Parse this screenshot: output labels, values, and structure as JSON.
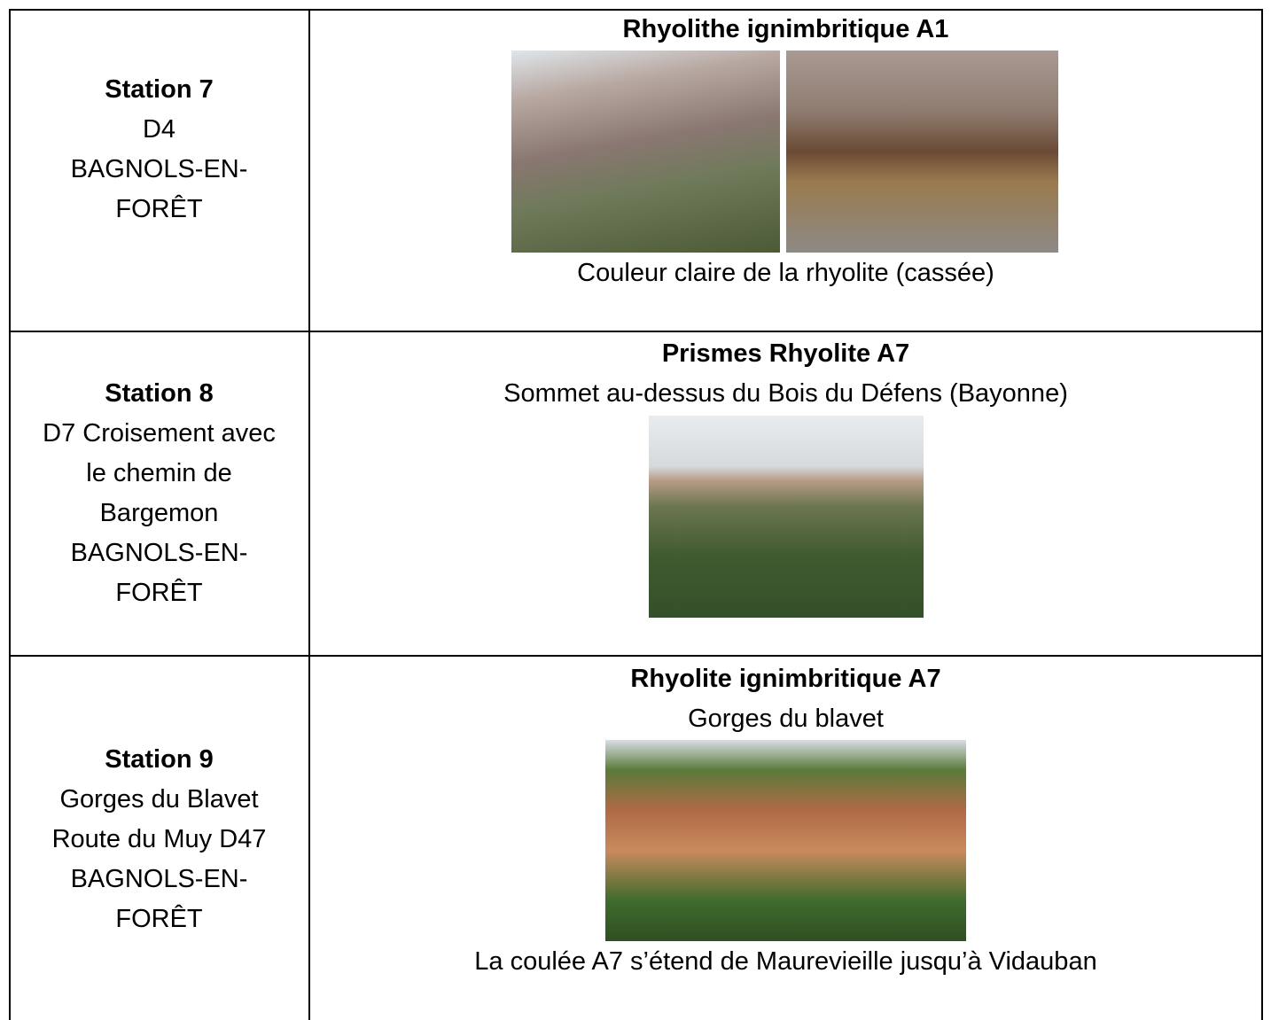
{
  "table": {
    "rows": [
      {
        "station": {
          "title": "Station 7",
          "lines": [
            "D4",
            "BAGNOLS-EN-",
            "FORÊT"
          ]
        },
        "content": {
          "title": "Rhyolithe ignimbritique A1",
          "caption": "Couleur claire de la rhyolite (cassée)"
        }
      },
      {
        "station": {
          "title": "Station 8",
          "lines": [
            "D7 Croisement avec",
            "le chemin de",
            "Bargemon",
            "BAGNOLS-EN-",
            "FORÊT"
          ]
        },
        "content": {
          "title": "Prismes Rhyolite A7",
          "subtitle": "Sommet au-dessus du Bois du Défens (Bayonne)"
        }
      },
      {
        "station": {
          "title": "Station 9",
          "lines": [
            "Gorges du Blavet",
            "Route du Muy D47",
            "BAGNOLS-EN-",
            "FORÊT"
          ]
        },
        "content": {
          "title": "Rhyolite ignimbritique A7",
          "subtitle": "Gorges du blavet",
          "caption": "La coulée A7 s’étend de Maurevieille jusqu’à Vidauban"
        }
      }
    ]
  }
}
